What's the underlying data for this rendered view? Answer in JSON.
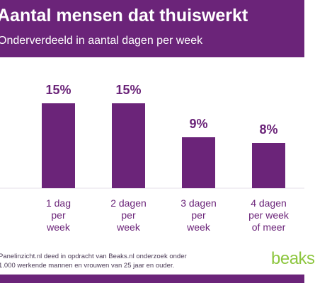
{
  "header": {
    "title": "Aantal mensen dat thuiswerkt",
    "subtitle": "Onderverdeeld in aantal dagen per week"
  },
  "chart_data": {
    "type": "bar",
    "categories": [
      [
        "1 dag",
        "per",
        "week"
      ],
      [
        "2 dagen",
        "per",
        "week"
      ],
      [
        "3 dagen",
        "per",
        "week"
      ],
      [
        "4 dagen",
        "per week",
        "of meer"
      ]
    ],
    "values": [
      15,
      15,
      9,
      8
    ],
    "data_labels": [
      "15%",
      "15%",
      "9%",
      "8%"
    ],
    "unit": "%",
    "grid": false,
    "legend": "none"
  },
  "footer": {
    "note_lines": [
      "Panelinzicht.nl deed in opdracht van Beaks.nl onderzoek onder",
      "1.000 werkende mannen en vrouwen van 25 jaar en ouder."
    ],
    "logo_text": "beaks"
  },
  "colors": {
    "brand": "#6b2479",
    "bar": "#6b2479",
    "text": "#6b2479",
    "logo": "#8dc63f"
  }
}
